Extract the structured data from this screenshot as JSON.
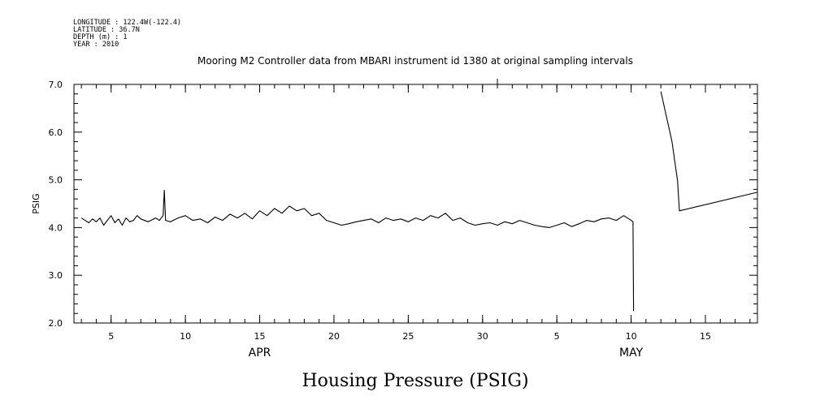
{
  "header": {
    "meta_lines": [
      "LONGITUDE : 122.4W(-122.4)",
      "LATITUDE : 36.7N",
      "DEPTH (m) : 1",
      "YEAR : 2010"
    ]
  },
  "chart_data": {
    "type": "line",
    "title": "Mooring M2 Controller data from MBARI instrument id 1380 at original sampling intervals",
    "ylabel": "PSIG",
    "caption": "Housing Pressure (PSIG)",
    "xlim": [
      "2010-04-02T12:00",
      "2010-05-18T12:00"
    ],
    "ylim": [
      2.0,
      7.0
    ],
    "y_ticks": [
      "2.0",
      "3.0",
      "4.0",
      "5.0",
      "6.0",
      "7.0"
    ],
    "x_ticks": [
      {
        "date": "2010-04-05",
        "label": "5"
      },
      {
        "date": "2010-04-10",
        "label": "10"
      },
      {
        "date": "2010-04-15",
        "label": "15"
      },
      {
        "date": "2010-04-20",
        "label": "20"
      },
      {
        "date": "2010-04-25",
        "label": "25"
      },
      {
        "date": "2010-04-30",
        "label": "30"
      },
      {
        "date": "2010-05-05",
        "label": "5"
      },
      {
        "date": "2010-05-10",
        "label": "10"
      },
      {
        "date": "2010-05-15",
        "label": "15"
      }
    ],
    "month_labels": [
      {
        "date": "2010-04-15",
        "label": "APR"
      },
      {
        "date": "2010-05-10",
        "label": "MAY"
      }
    ],
    "series": [
      {
        "color": "#000000",
        "segments": [
          {
            "x": [
              "2010-04-03T00:00",
              "2010-04-03T06:00",
              "2010-04-03T12:00",
              "2010-04-03T18:00",
              "2010-04-04T00:00",
              "2010-04-04T06:00",
              "2010-04-04T12:00",
              "2010-04-04T18:00",
              "2010-04-05T00:00",
              "2010-04-05T06:00",
              "2010-04-05T12:00",
              "2010-04-05T18:00",
              "2010-04-06T00:00",
              "2010-04-06T06:00",
              "2010-04-06T12:00",
              "2010-04-06T18:00",
              "2010-04-07T00:00",
              "2010-04-07T12:00",
              "2010-04-08T00:00",
              "2010-04-08T06:00",
              "2010-04-08T12:00",
              "2010-04-08T14:00",
              "2010-04-08T16:00",
              "2010-04-09T00:00",
              "2010-04-09T12:00",
              "2010-04-10T00:00",
              "2010-04-10T12:00",
              "2010-04-11T00:00",
              "2010-04-11T12:00",
              "2010-04-12T00:00",
              "2010-04-12T12:00",
              "2010-04-13T00:00",
              "2010-04-13T12:00",
              "2010-04-14T00:00",
              "2010-04-14T12:00",
              "2010-04-15T00:00",
              "2010-04-15T12:00",
              "2010-04-16T00:00",
              "2010-04-16T12:00",
              "2010-04-17T00:00",
              "2010-04-17T12:00",
              "2010-04-18T00:00",
              "2010-04-18T12:00",
              "2010-04-19T00:00",
              "2010-04-19T12:00",
              "2010-04-20T00:00",
              "2010-04-20T12:00",
              "2010-04-21T00:00",
              "2010-04-21T12:00",
              "2010-04-22T00:00",
              "2010-04-22T12:00",
              "2010-04-23T00:00",
              "2010-04-23T12:00",
              "2010-04-24T00:00",
              "2010-04-24T12:00",
              "2010-04-25T00:00",
              "2010-04-25T12:00",
              "2010-04-26T00:00",
              "2010-04-26T12:00",
              "2010-04-27T00:00",
              "2010-04-27T12:00",
              "2010-04-28T00:00",
              "2010-04-28T12:00",
              "2010-04-29T00:00",
              "2010-04-29T12:00",
              "2010-04-30T00:00",
              "2010-04-30T12:00",
              "2010-05-01T00:00",
              "2010-05-01T12:00",
              "2010-05-02T00:00",
              "2010-05-02T12:00",
              "2010-05-03T00:00",
              "2010-05-03T12:00",
              "2010-05-04T00:00",
              "2010-05-04T12:00",
              "2010-05-05T00:00",
              "2010-05-05T12:00",
              "2010-05-06T00:00",
              "2010-05-06T12:00",
              "2010-05-07T00:00",
              "2010-05-07T12:00",
              "2010-05-08T00:00",
              "2010-05-08T12:00",
              "2010-05-09T00:00",
              "2010-05-09T12:00",
              "2010-05-10T00:00",
              "2010-05-10T03:00",
              "2010-05-10T04:00"
            ],
            "y": [
              4.2,
              4.15,
              4.1,
              4.18,
              4.12,
              4.2,
              4.05,
              4.15,
              4.25,
              4.1,
              4.18,
              4.05,
              4.2,
              4.12,
              4.15,
              4.25,
              4.18,
              4.12,
              4.2,
              4.15,
              4.25,
              4.78,
              4.15,
              4.12,
              4.2,
              4.25,
              4.15,
              4.18,
              4.1,
              4.22,
              4.15,
              4.28,
              4.2,
              4.3,
              4.18,
              4.35,
              4.25,
              4.4,
              4.3,
              4.45,
              4.35,
              4.4,
              4.25,
              4.3,
              4.15,
              4.1,
              4.05,
              4.08,
              4.12,
              4.15,
              4.18,
              4.1,
              4.2,
              4.15,
              4.18,
              4.12,
              4.2,
              4.15,
              4.25,
              4.2,
              4.3,
              4.15,
              4.2,
              4.1,
              4.05,
              4.08,
              4.1,
              4.05,
              4.12,
              4.08,
              4.15,
              4.1,
              4.05,
              4.02,
              4.0,
              4.05,
              4.1,
              4.02,
              4.08,
              4.15,
              4.12,
              4.18,
              4.2,
              4.15,
              4.25,
              4.15,
              4.12,
              2.25
            ]
          },
          {
            "x": [
              "2010-05-12T00:00",
              "2010-05-12T18:00",
              "2010-05-13T03:00",
              "2010-05-13T06:00",
              "2010-05-18T12:00"
            ],
            "y": [
              6.85,
              5.8,
              4.98,
              4.35,
              4.74
            ]
          }
        ]
      }
    ]
  }
}
